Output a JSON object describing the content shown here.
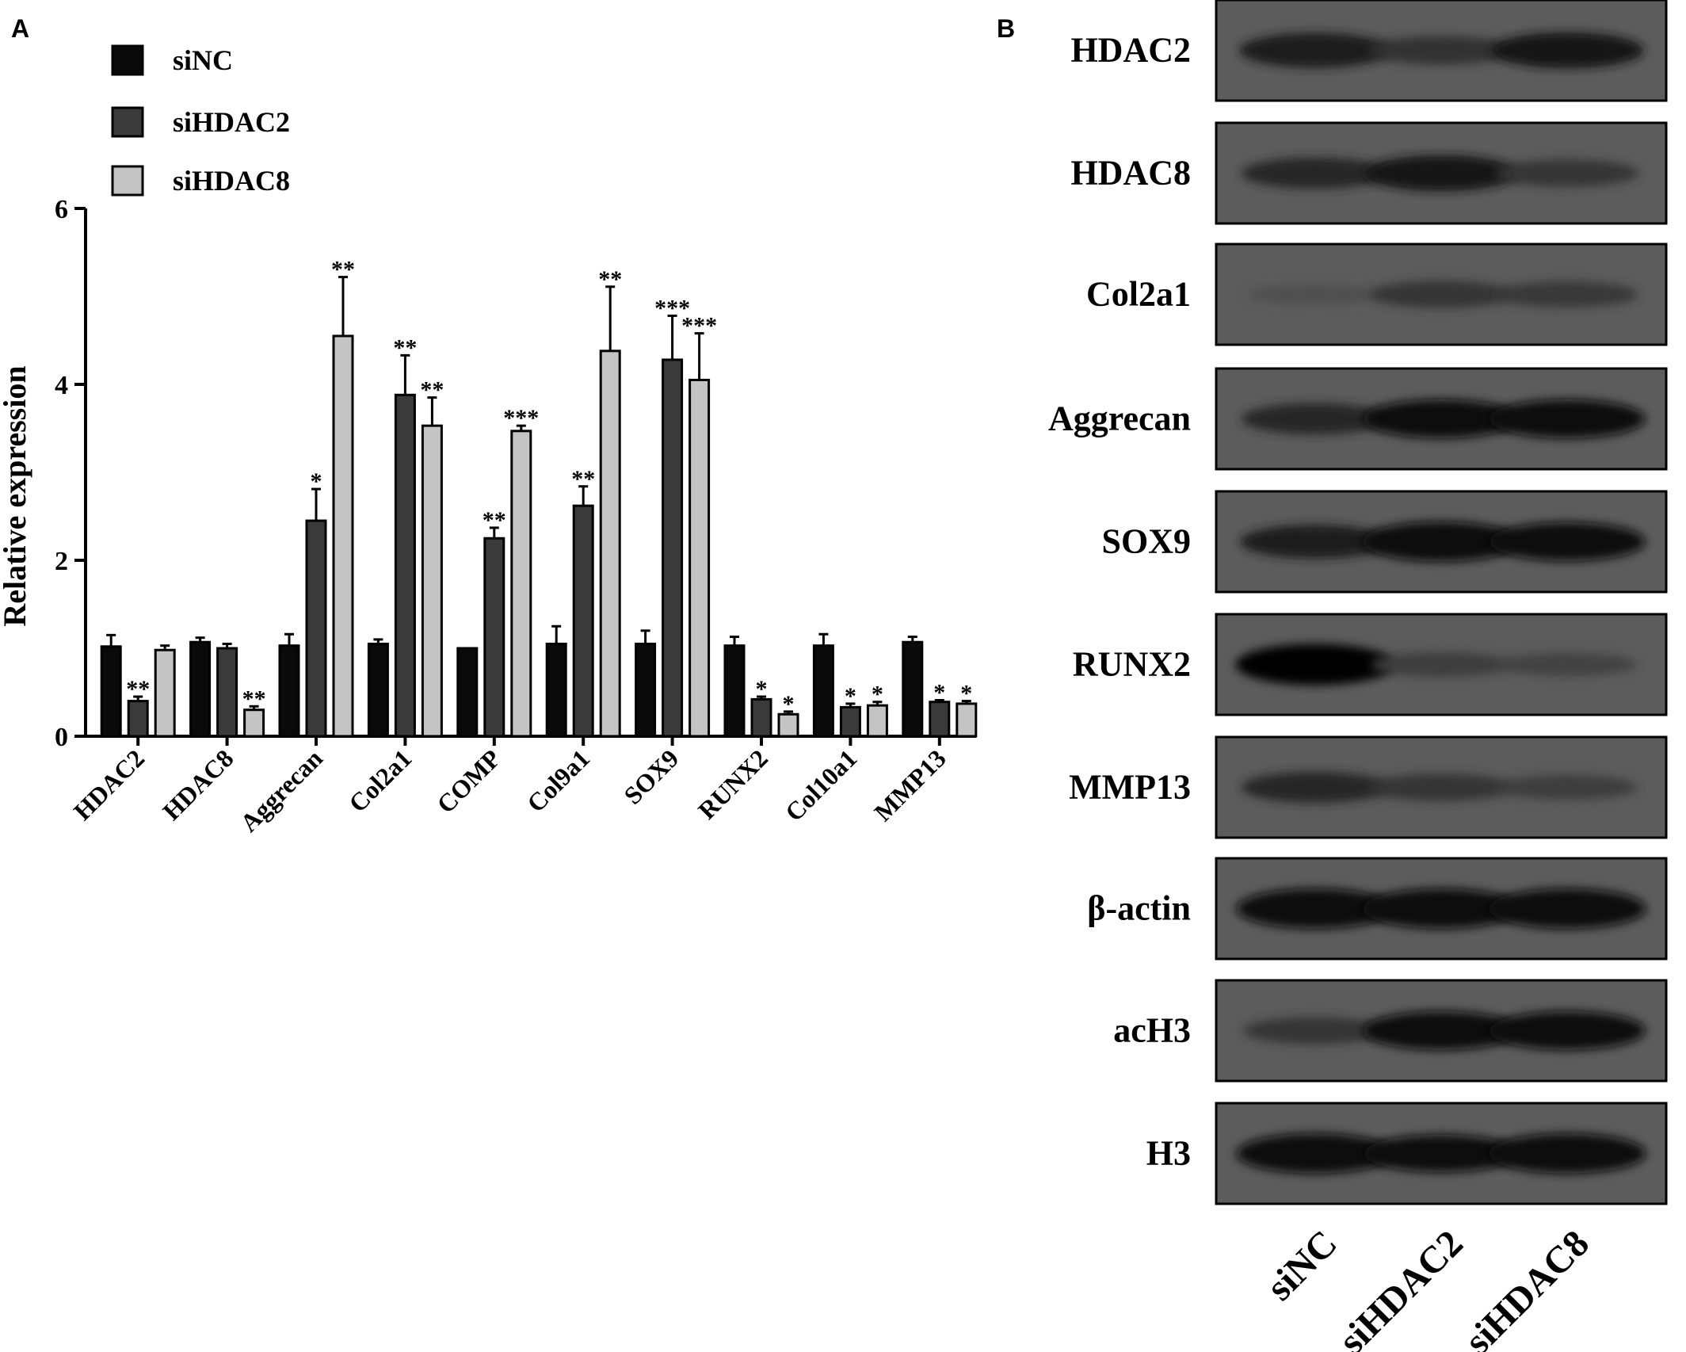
{
  "panels": {
    "a_label": "A",
    "b_label": "B"
  },
  "chart_data": [
    {
      "type": "bar",
      "ylabel": "Relative expression",
      "xlabel": "",
      "ylim": [
        0,
        6
      ],
      "yticks": [
        0,
        2,
        4,
        6
      ],
      "legend_position": "top-left",
      "categories": [
        "HDAC2",
        "HDAC8",
        "Aggrecan",
        "Col2a1",
        "COMP",
        "Col9a1",
        "SOX9",
        "RUNX2",
        "Col10a1",
        "MMP13"
      ],
      "series": [
        {
          "name": "siNC",
          "color": "#0a0a0a",
          "values": [
            1.02,
            1.07,
            1.03,
            1.05,
            1.0,
            1.05,
            1.05,
            1.03,
            1.03,
            1.07
          ],
          "errors": [
            0.13,
            0.05,
            0.13,
            0.05,
            0.0,
            0.2,
            0.15,
            0.1,
            0.13,
            0.06
          ],
          "significance": [
            "",
            "",
            "",
            "",
            "",
            "",
            "",
            "",
            "",
            ""
          ]
        },
        {
          "name": "siHDAC2",
          "color": "#3a3a3a",
          "values": [
            0.4,
            1.0,
            2.45,
            3.88,
            2.25,
            2.62,
            4.28,
            0.42,
            0.33,
            0.39
          ],
          "errors": [
            0.05,
            0.05,
            0.36,
            0.45,
            0.12,
            0.22,
            0.5,
            0.03,
            0.04,
            0.02
          ],
          "significance": [
            "**",
            "",
            "*",
            "**",
            "**",
            "**",
            "***",
            "*",
            "*",
            "*"
          ]
        },
        {
          "name": "siHDAC8",
          "color": "#c4c4c4",
          "values": [
            0.98,
            0.3,
            4.55,
            3.53,
            3.47,
            4.38,
            4.05,
            0.25,
            0.35,
            0.37
          ],
          "errors": [
            0.05,
            0.04,
            0.67,
            0.32,
            0.06,
            0.73,
            0.53,
            0.03,
            0.04,
            0.03
          ],
          "significance": [
            "",
            "**",
            "**",
            "**",
            "***",
            "**",
            "***",
            "*",
            "*",
            "*"
          ]
        }
      ]
    },
    {
      "type": "table",
      "description_kind": "western blot",
      "rows": [
        "HDAC2",
        "HDAC8",
        "Col2a1",
        "Aggrecan",
        "SOX9",
        "RUNX2",
        "MMP13",
        "β-actin",
        "acH3",
        "H3"
      ],
      "columns": [
        "siNC",
        "siHDAC2",
        "siHDAC8"
      ],
      "band_intensity": [
        [
          0.75,
          0.5,
          0.8
        ],
        [
          0.6,
          0.8,
          0.45
        ],
        [
          0.15,
          0.45,
          0.4
        ],
        [
          0.6,
          0.9,
          0.9
        ],
        [
          0.7,
          0.95,
          0.9
        ],
        [
          1.0,
          0.35,
          0.3
        ],
        [
          0.6,
          0.45,
          0.35
        ],
        [
          0.95,
          0.95,
          0.95
        ],
        [
          0.45,
          0.9,
          0.9
        ],
        [
          0.95,
          0.85,
          0.95
        ]
      ]
    }
  ]
}
